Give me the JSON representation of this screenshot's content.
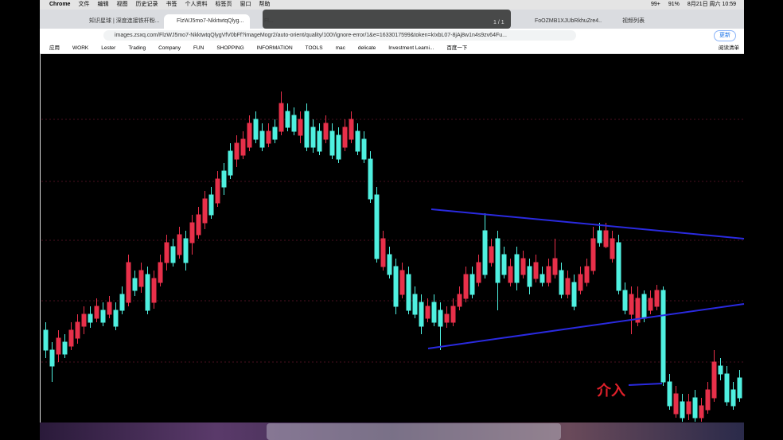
{
  "menu_bar": {
    "app": "Chrome",
    "items": [
      "文件",
      "编辑",
      "视图",
      "历史记录",
      "书签",
      "个人资料",
      "标签页",
      "窗口",
      "帮助"
    ],
    "badge": "99+",
    "battery": "91%",
    "clock": "8月21日 周六 10:59"
  },
  "tabs": [
    "知识星球 | 深度连接铁杆粉...",
    "FlzWJ5mo7-NkktwtqQlyg...",
    "Fl...",
    "FoOZMB1XJUbRkhuZre4...",
    "视频列表"
  ],
  "overlay": {
    "counter": "1 / 1"
  },
  "address_bar": {
    "url": "images.zsxq.com/FlzWJ5mo7-NkktwtqQlygVfV0bFf?imageMogr2/auto-orient/quality/100!/ignore-error/1&e=1633017599&token=kIxbL07-8jAj8w1n4s9zv64Fu...",
    "update": "更新"
  },
  "bookmarks": {
    "items": [
      "应用",
      "WORK",
      "Lester",
      "Trading",
      "Company",
      "FUN",
      "SHOPPING",
      "INFORMATION",
      "TOOLS",
      "mac",
      "delicate",
      "Investment Learni...",
      "百度一下"
    ],
    "reading_list": "阅读清单"
  },
  "image": {
    "annotation": "介入"
  }
}
